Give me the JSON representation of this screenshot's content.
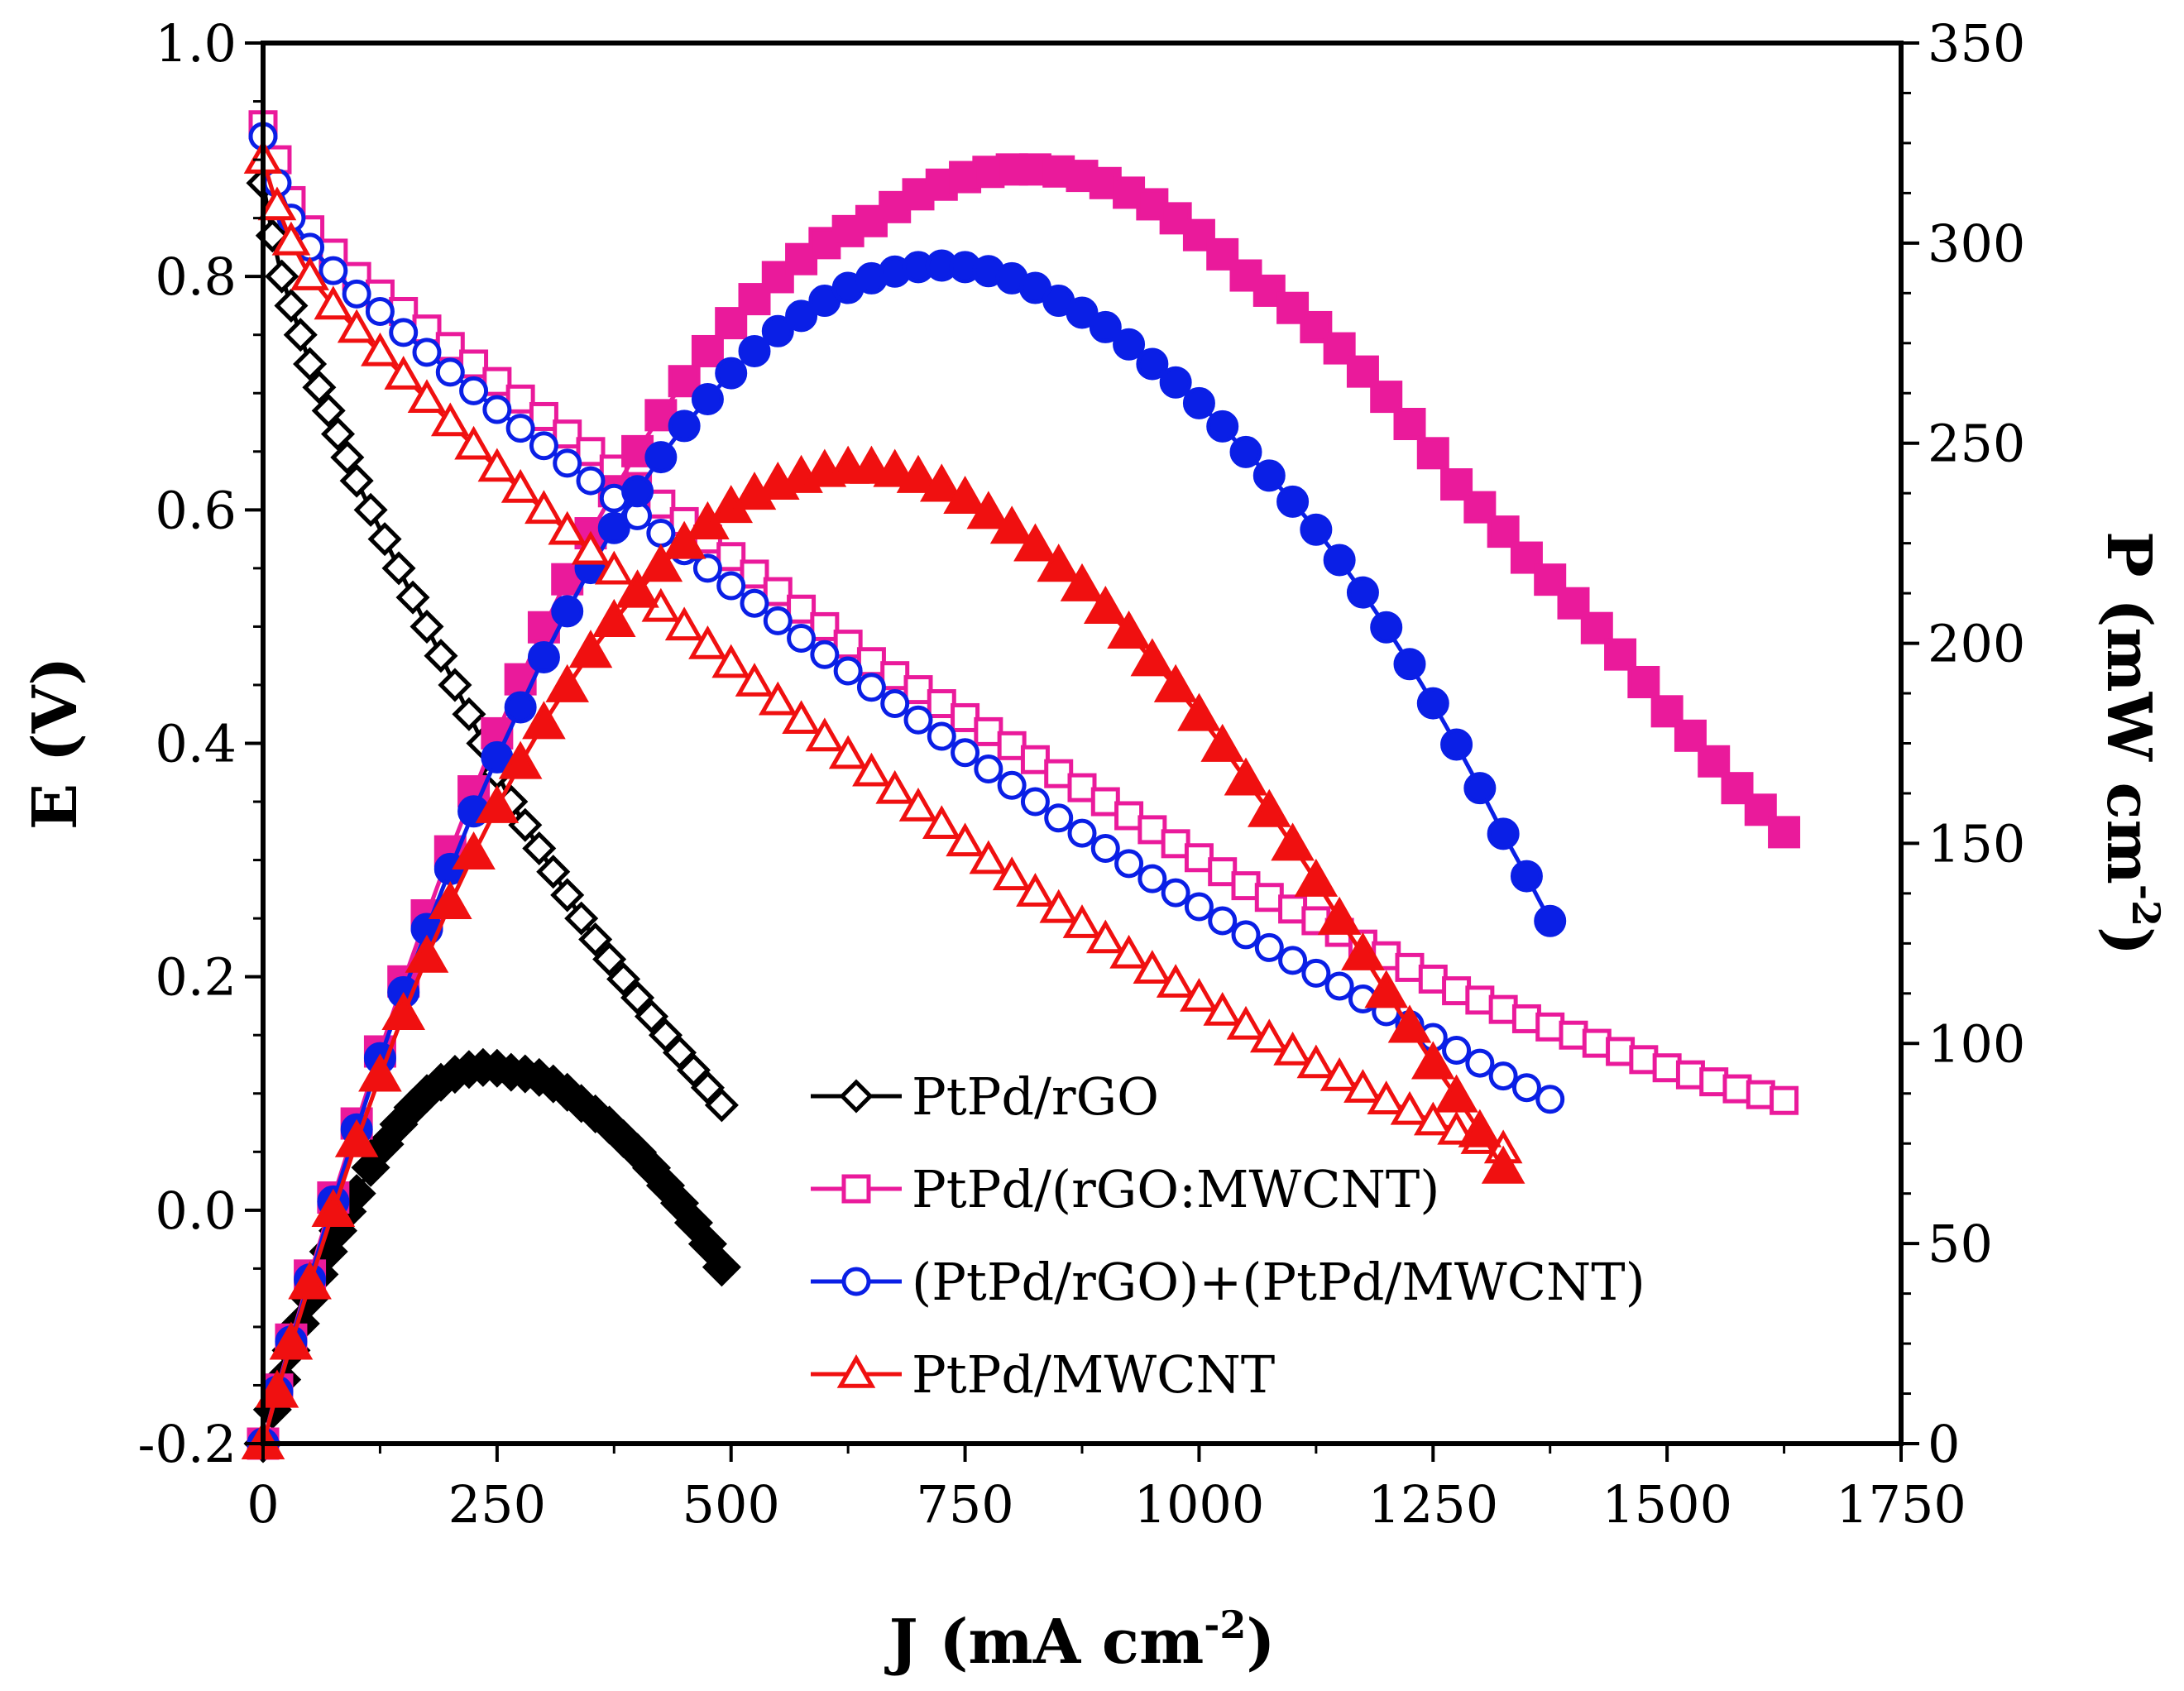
{
  "chart_data": {
    "type": "line",
    "xlabel": "J (mA cm",
    "xlabel_sup": "-2",
    "xlabel_end": ")",
    "ylabel": "E (V)",
    "y2label": "P (mW cm",
    "y2label_sup": "-2",
    "y2label_end": ")",
    "xlim": [
      0,
      1750
    ],
    "ylim": [
      -0.2,
      1.0
    ],
    "y2lim": [
      0,
      350
    ],
    "xticks": [
      "0",
      "250",
      "500",
      "750",
      "1000",
      "1250",
      "1500",
      "1750"
    ],
    "yticks": [
      "-0.2",
      "0.0",
      "0.2",
      "0.4",
      "0.6",
      "0.8",
      "1.0"
    ],
    "y2ticks": [
      "0",
      "50",
      "100",
      "150",
      "200",
      "250",
      "300",
      "350"
    ],
    "grid": false,
    "legend_position": "bottom-center",
    "series": [
      {
        "name": "PtPd/rGO",
        "color": "#000000",
        "marker": "diamond",
        "polarization": {
          "x": [
            0,
            10,
            20,
            30,
            40,
            50,
            60,
            70,
            80,
            90,
            100,
            115,
            130,
            145,
            160,
            175,
            190,
            205,
            220,
            235,
            250,
            265,
            280,
            295,
            310,
            325,
            340,
            355,
            370,
            385,
            400,
            415,
            430,
            445,
            460,
            475,
            490
          ],
          "y": [
            0.88,
            0.835,
            0.8,
            0.775,
            0.75,
            0.725,
            0.705,
            0.685,
            0.665,
            0.645,
            0.625,
            0.6,
            0.575,
            0.55,
            0.525,
            0.5,
            0.475,
            0.45,
            0.425,
            0.4,
            0.375,
            0.35,
            0.33,
            0.31,
            0.29,
            0.27,
            0.25,
            0.232,
            0.215,
            0.198,
            0.182,
            0.166,
            0.15,
            0.135,
            0.12,
            0.105,
            0.09
          ]
        },
        "power": {
          "x": [
            0,
            10,
            20,
            30,
            40,
            50,
            60,
            70,
            80,
            90,
            100,
            115,
            130,
            145,
            160,
            175,
            190,
            205,
            220,
            235,
            250,
            265,
            280,
            295,
            310,
            325,
            340,
            355,
            370,
            385,
            400,
            415,
            430,
            445,
            460,
            475,
            490
          ],
          "y": [
            0,
            8.5,
            16,
            23.3,
            30,
            36.3,
            42.3,
            48,
            53.2,
            58,
            62.5,
            69,
            74.8,
            79.8,
            84,
            87.5,
            90.3,
            92.3,
            93.5,
            94,
            93.8,
            92.8,
            92.4,
            91.5,
            89.9,
            87.8,
            85,
            82.4,
            79.6,
            76.2,
            72.8,
            68.9,
            64.5,
            60.1,
            55.2,
            49.9,
            44.1
          ]
        }
      },
      {
        "name": "PtPd/(rGO:MWCNT)",
        "color": "#ea1a9b",
        "marker": "square",
        "polarization": {
          "x": [
            0,
            15,
            30,
            50,
            75,
            100,
            125,
            150,
            175,
            200,
            225,
            250,
            275,
            300,
            325,
            350,
            375,
            400,
            425,
            450,
            475,
            500,
            525,
            550,
            575,
            600,
            625,
            650,
            675,
            700,
            725,
            750,
            775,
            800,
            825,
            850,
            875,
            900,
            925,
            950,
            975,
            1000,
            1025,
            1050,
            1075,
            1100,
            1125,
            1150,
            1175,
            1200,
            1225,
            1250,
            1275,
            1300,
            1325,
            1350,
            1375,
            1400,
            1425,
            1450,
            1475,
            1500,
            1525,
            1550,
            1575,
            1600,
            1625
          ],
          "y": [
            0.93,
            0.9,
            0.865,
            0.84,
            0.82,
            0.8,
            0.785,
            0.77,
            0.755,
            0.74,
            0.725,
            0.71,
            0.695,
            0.68,
            0.665,
            0.65,
            0.635,
            0.62,
            0.605,
            0.59,
            0.575,
            0.56,
            0.545,
            0.53,
            0.515,
            0.5,
            0.485,
            0.47,
            0.458,
            0.446,
            0.434,
            0.422,
            0.41,
            0.398,
            0.386,
            0.374,
            0.362,
            0.35,
            0.338,
            0.326,
            0.314,
            0.302,
            0.29,
            0.278,
            0.268,
            0.258,
            0.248,
            0.238,
            0.228,
            0.218,
            0.208,
            0.198,
            0.188,
            0.18,
            0.172,
            0.164,
            0.157,
            0.15,
            0.143,
            0.136,
            0.129,
            0.122,
            0.116,
            0.11,
            0.104,
            0.099,
            0.094
          ]
        },
        "power": {
          "x": [
            0,
            15,
            30,
            50,
            75,
            100,
            125,
            150,
            175,
            200,
            225,
            250,
            275,
            300,
            325,
            350,
            375,
            400,
            425,
            450,
            475,
            500,
            525,
            550,
            575,
            600,
            625,
            650,
            675,
            700,
            725,
            750,
            775,
            800,
            825,
            850,
            875,
            900,
            925,
            950,
            975,
            1000,
            1025,
            1050,
            1075,
            1100,
            1125,
            1150,
            1175,
            1200,
            1225,
            1250,
            1275,
            1300,
            1325,
            1350,
            1375,
            1400,
            1425,
            1450,
            1475,
            1500,
            1525,
            1550,
            1575,
            1600,
            1625
          ],
          "y": [
            0,
            13.5,
            26,
            42,
            61.5,
            80,
            98,
            115.5,
            132,
            148,
            163,
            177.5,
            191,
            204,
            216,
            227.5,
            238,
            248,
            257,
            265.5,
            273,
            280,
            286,
            291.5,
            296,
            300,
            303,
            305.5,
            309,
            312.2,
            314.6,
            316.5,
            317.8,
            318.4,
            318.4,
            317.9,
            316.8,
            315,
            312.6,
            309.7,
            306.2,
            302,
            297.2,
            291.9,
            288.1,
            283.8,
            279,
            273.7,
            267.9,
            261.6,
            254.8,
            247.5,
            239.7,
            234,
            227.9,
            221.4,
            215.9,
            210,
            203.8,
            197.2,
            190.3,
            183,
            176.9,
            170.5,
            163.8,
            158.4,
            152.8
          ]
        }
      },
      {
        "name": "(PtPd/rGO)+(PtPd/MWCNT)",
        "color": "#0a1fe6",
        "marker": "circle",
        "polarization": {
          "x": [
            0,
            15,
            30,
            50,
            75,
            100,
            125,
            150,
            175,
            200,
            225,
            250,
            275,
            300,
            325,
            350,
            375,
            400,
            425,
            450,
            475,
            500,
            525,
            550,
            575,
            600,
            625,
            650,
            675,
            700,
            725,
            750,
            775,
            800,
            825,
            850,
            875,
            900,
            925,
            950,
            975,
            1000,
            1025,
            1050,
            1075,
            1100,
            1125,
            1150,
            1175,
            1200,
            1225,
            1250,
            1275,
            1300,
            1325,
            1350,
            1375
          ],
          "y": [
            0.92,
            0.88,
            0.85,
            0.825,
            0.805,
            0.785,
            0.77,
            0.752,
            0.735,
            0.718,
            0.702,
            0.686,
            0.67,
            0.655,
            0.64,
            0.625,
            0.61,
            0.595,
            0.58,
            0.565,
            0.55,
            0.535,
            0.52,
            0.505,
            0.49,
            0.476,
            0.462,
            0.448,
            0.434,
            0.42,
            0.406,
            0.392,
            0.378,
            0.364,
            0.35,
            0.336,
            0.323,
            0.31,
            0.297,
            0.284,
            0.272,
            0.26,
            0.248,
            0.236,
            0.225,
            0.214,
            0.203,
            0.192,
            0.181,
            0.17,
            0.159,
            0.148,
            0.137,
            0.126,
            0.115,
            0.105,
            0.095
          ]
        },
        "power": {
          "x": [
            0,
            15,
            30,
            50,
            75,
            100,
            125,
            150,
            175,
            200,
            225,
            250,
            275,
            300,
            325,
            350,
            375,
            400,
            425,
            450,
            475,
            500,
            525,
            550,
            575,
            600,
            625,
            650,
            675,
            700,
            725,
            750,
            775,
            800,
            825,
            850,
            875,
            900,
            925,
            950,
            975,
            1000,
            1025,
            1050,
            1075,
            1100,
            1125,
            1150,
            1175,
            1200,
            1225,
            1250,
            1275,
            1300,
            1325,
            1350,
            1375
          ],
          "y": [
            0,
            13,
            25.5,
            41,
            60.5,
            78.5,
            96.3,
            112.8,
            128.6,
            143.6,
            158,
            171.5,
            184,
            196.5,
            208,
            218.8,
            228.8,
            238,
            246.5,
            254.3,
            261,
            267.5,
            273,
            278,
            281.8,
            285.6,
            288.8,
            291.2,
            292.9,
            294,
            294.4,
            294,
            293,
            291.2,
            288.8,
            285.6,
            282.6,
            279,
            274.7,
            269.8,
            265.2,
            260,
            254.2,
            247.8,
            241.9,
            235.4,
            228.4,
            220.8,
            212.7,
            204,
            194.8,
            185,
            174.7,
            163.8,
            152.4,
            141.8,
            130.6
          ]
        }
      },
      {
        "name": "PtPd/MWCNT",
        "color": "#f01010",
        "marker": "triangle",
        "polarization": {
          "x": [
            0,
            15,
            30,
            50,
            75,
            100,
            125,
            150,
            175,
            200,
            225,
            250,
            275,
            300,
            325,
            350,
            375,
            400,
            425,
            450,
            475,
            500,
            525,
            550,
            575,
            600,
            625,
            650,
            675,
            700,
            725,
            750,
            775,
            800,
            825,
            850,
            875,
            900,
            925,
            950,
            975,
            1000,
            1025,
            1050,
            1075,
            1100,
            1125,
            1150,
            1175,
            1200,
            1225,
            1250,
            1275,
            1300,
            1325
          ],
          "y": [
            0.9,
            0.86,
            0.83,
            0.8,
            0.775,
            0.755,
            0.735,
            0.715,
            0.695,
            0.675,
            0.655,
            0.636,
            0.618,
            0.6,
            0.582,
            0.565,
            0.548,
            0.532,
            0.516,
            0.5,
            0.484,
            0.468,
            0.452,
            0.436,
            0.42,
            0.405,
            0.39,
            0.375,
            0.36,
            0.345,
            0.33,
            0.315,
            0.3,
            0.286,
            0.272,
            0.258,
            0.245,
            0.232,
            0.219,
            0.206,
            0.194,
            0.182,
            0.17,
            0.158,
            0.147,
            0.136,
            0.125,
            0.114,
            0.104,
            0.094,
            0.085,
            0.076,
            0.068,
            0.06,
            0.052
          ]
        },
        "power": {
          "x": [
            0,
            15,
            30,
            50,
            75,
            100,
            125,
            150,
            175,
            200,
            225,
            250,
            275,
            300,
            325,
            350,
            375,
            400,
            425,
            450,
            475,
            500,
            525,
            550,
            575,
            600,
            625,
            650,
            675,
            700,
            725,
            750,
            775,
            800,
            825,
            850,
            875,
            900,
            925,
            950,
            975,
            1000,
            1025,
            1050,
            1075,
            1100,
            1125,
            1150,
            1175,
            1200,
            1225,
            1250,
            1275,
            1300,
            1325
          ],
          "y": [
            0,
            12.9,
            24.9,
            40,
            58.1,
            75.5,
            91.9,
            107.3,
            121.6,
            135,
            147.4,
            159,
            170,
            180,
            189.2,
            197.8,
            205.5,
            212.8,
            219.3,
            225,
            229.9,
            234,
            237.3,
            239.8,
            241.5,
            243,
            243.8,
            243.8,
            243,
            241.5,
            239.3,
            236.3,
            232.5,
            228.8,
            224.4,
            219.3,
            214.4,
            208.8,
            202.6,
            195.7,
            189.2,
            182,
            174.3,
            165.9,
            158,
            149.6,
            140.6,
            131.1,
            122.2,
            112.8,
            104.1,
            95,
            86.7,
            78,
            68.9
          ]
        }
      }
    ]
  }
}
